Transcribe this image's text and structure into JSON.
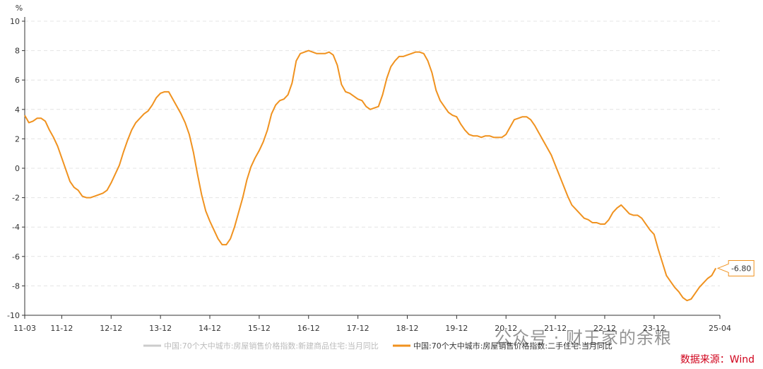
{
  "source_note": "数据来源：Wind",
  "watermark": "公众号 · 财王家的余粮",
  "colors": {
    "series_active": "#f0921f",
    "series_inactive": "#cccccc",
    "axis": "#333333",
    "grid": "#e4e4e4",
    "source": "#d0021b"
  },
  "chart_data": {
    "type": "line",
    "unit": "%",
    "ylim": [
      -10,
      10
    ],
    "yticks": [
      -10,
      -8,
      -6,
      -4,
      -2,
      0,
      2,
      4,
      6,
      8,
      10
    ],
    "x_tick_labels": [
      "11-03",
      "11-12",
      "12-12",
      "13-12",
      "14-12",
      "15-12",
      "16-12",
      "17-12",
      "18-12",
      "19-12",
      "20-12",
      "21-12",
      "22-12",
      "23-12",
      "25-04"
    ],
    "x_tick_months": [
      0,
      9,
      21,
      33,
      45,
      57,
      69,
      81,
      93,
      105,
      117,
      129,
      141,
      153,
      169
    ],
    "x_range_months": [
      0,
      169
    ],
    "grid": true,
    "legend_position": "bottom",
    "series": [
      {
        "name": "中国:70个大中城市:房屋销售价格指数:新建商品住宅:当月同比",
        "visible": false,
        "values": []
      },
      {
        "name": "中国:70个大中城市:房屋销售价格指数:二手住宅:当月同比",
        "visible": true,
        "end_label": "-6.80",
        "values": [
          3.6,
          3.1,
          3.2,
          3.4,
          3.4,
          3.2,
          2.6,
          2.1,
          1.5,
          0.7,
          -0.1,
          -0.9,
          -1.3,
          -1.5,
          -1.9,
          -2.0,
          -2.0,
          -1.9,
          -1.8,
          -1.7,
          -1.5,
          -1.0,
          -0.4,
          0.2,
          1.1,
          1.9,
          2.6,
          3.1,
          3.4,
          3.7,
          3.9,
          4.3,
          4.8,
          5.1,
          5.2,
          5.2,
          4.7,
          4.2,
          3.7,
          3.1,
          2.3,
          1.1,
          -0.4,
          -1.8,
          -2.9,
          -3.6,
          -4.2,
          -4.8,
          -5.2,
          -5.2,
          -4.8,
          -4.0,
          -3.0,
          -2.0,
          -0.8,
          0.1,
          0.7,
          1.2,
          1.8,
          2.6,
          3.7,
          4.3,
          4.6,
          4.7,
          5.0,
          5.8,
          7.3,
          7.8,
          7.9,
          8.0,
          7.9,
          7.8,
          7.8,
          7.8,
          7.9,
          7.7,
          7.0,
          5.7,
          5.2,
          5.1,
          4.9,
          4.7,
          4.6,
          4.2,
          4.0,
          4.1,
          4.2,
          5.0,
          6.1,
          6.9,
          7.3,
          7.6,
          7.6,
          7.7,
          7.8,
          7.9,
          7.9,
          7.8,
          7.3,
          6.5,
          5.3,
          4.6,
          4.2,
          3.8,
          3.6,
          3.5,
          3.0,
          2.6,
          2.3,
          2.2,
          2.2,
          2.1,
          2.2,
          2.2,
          2.1,
          2.1,
          2.1,
          2.3,
          2.8,
          3.3,
          3.4,
          3.5,
          3.5,
          3.3,
          2.9,
          2.4,
          1.9,
          1.4,
          0.9,
          0.2,
          -0.5,
          -1.2,
          -1.9,
          -2.5,
          -2.8,
          -3.1,
          -3.4,
          -3.5,
          -3.7,
          -3.7,
          -3.8,
          -3.8,
          -3.5,
          -3.0,
          -2.7,
          -2.5,
          -2.8,
          -3.1,
          -3.2,
          -3.2,
          -3.4,
          -3.8,
          -4.2,
          -4.5,
          -5.5,
          -6.4,
          -7.3,
          -7.7,
          -8.1,
          -8.4,
          -8.8,
          -9.0,
          -8.9,
          -8.5,
          -8.1,
          -7.8,
          -7.5,
          -7.3,
          -6.8
        ]
      }
    ]
  }
}
